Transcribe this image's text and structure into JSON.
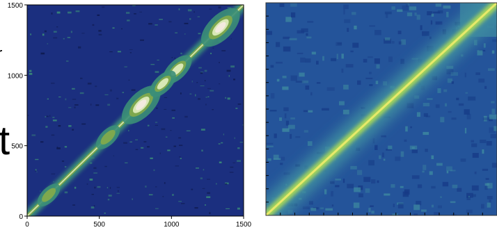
{
  "cropped_text": {
    "top_mark": "r",
    "big_glyph": "t"
  },
  "colors": {
    "background_dark": "#1b2f7f",
    "contour_teal": "#3b8e78",
    "contour_green": "#7ea84e",
    "contour_light": "#d9e8b6",
    "contour_peak": "#f3eadf",
    "heatmap_base": "#24549a",
    "heatmap_mid": "#3e8aa0",
    "heatmap_high": "#a6d65a",
    "heatmap_peak": "#e8e96a"
  },
  "chart_data": [
    {
      "type": "heatmap",
      "style": "contour",
      "title": "",
      "xlabel": "",
      "ylabel": "",
      "xlim": [
        0,
        1500
      ],
      "ylim": [
        0,
        1500
      ],
      "x_ticks": [
        0,
        500,
        1000,
        1500
      ],
      "y_ticks": [
        0,
        500,
        1000,
        1500
      ],
      "x_tick_labels": [
        "0",
        "500",
        "1000",
        "1500"
      ],
      "y_tick_labels": [
        "0",
        "500",
        "1000",
        "1500"
      ],
      "grid": false,
      "diagonal": {
        "from": [
          0,
          0
        ],
        "to": [
          1500,
          1500
        ]
      },
      "hotspots": [
        {
          "x": 790,
          "y": 790,
          "intensity": 1.0
        },
        {
          "x": 1340,
          "y": 1340,
          "intensity": 1.0
        },
        {
          "x": 1040,
          "y": 1040,
          "intensity": 0.6
        },
        {
          "x": 940,
          "y": 940,
          "intensity": 0.5
        },
        {
          "x": 560,
          "y": 560,
          "intensity": 0.4
        },
        {
          "x": 150,
          "y": 150,
          "intensity": 0.35
        }
      ]
    },
    {
      "type": "heatmap",
      "style": "continuous",
      "title": "",
      "xlabel": "",
      "ylabel": "",
      "tick_labels": "none",
      "grid": false,
      "diagonal": {
        "from": [
          0,
          0
        ],
        "to": [
          1,
          1
        ]
      },
      "domain_blocks": [
        {
          "start": 0.0,
          "end": 0.84
        },
        {
          "start": 0.84,
          "end": 1.0
        }
      ]
    }
  ]
}
